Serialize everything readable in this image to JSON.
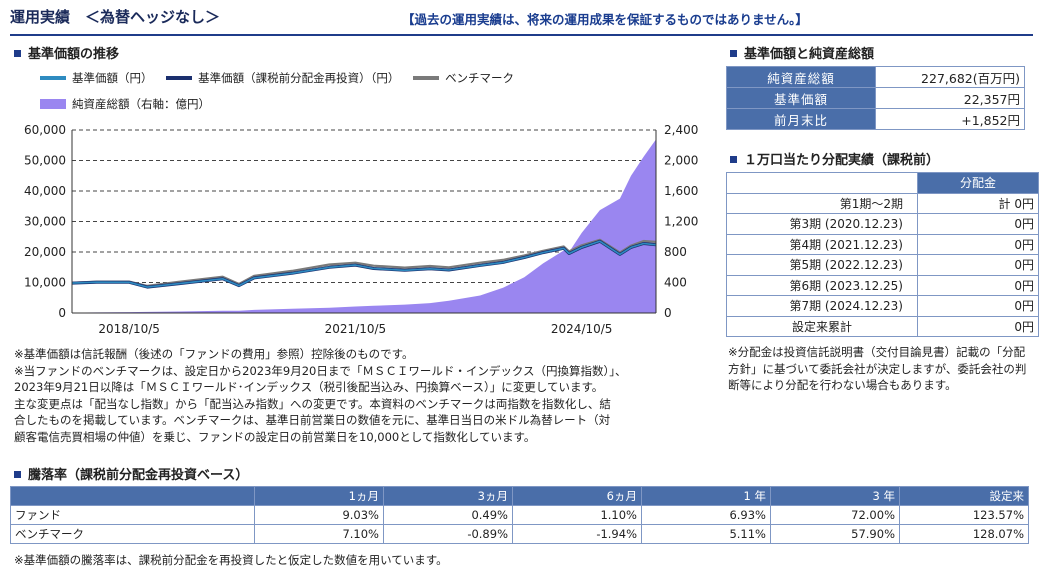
{
  "header": {
    "title": "運用実績　＜為替ヘッジなし＞",
    "disclaimer": "【過去の運用実績は、将来の運用成果を保証するものではありません。】"
  },
  "chart_section": {
    "title": "基準価額の推移",
    "legend": [
      {
        "label": "基準価額（円）",
        "color": "#2e8bc0",
        "kind": "line"
      },
      {
        "label": "基準価額（課税前分配金再投資）（円）",
        "color": "#1b2f6e",
        "kind": "line"
      },
      {
        "label": "ベンチマーク",
        "color": "#7a7a7a",
        "kind": "line"
      },
      {
        "label": "純資産総額（右軸：億円）",
        "color": "#9a86f0",
        "kind": "area"
      }
    ]
  },
  "chart_data": {
    "type": "line",
    "x_tick_labels": [
      "2018/10/5",
      "2021/10/5",
      "2024/10/5"
    ],
    "x_ticks": [
      "2018-10-05",
      "2021-10-05",
      "2024-10-05"
    ],
    "x_range": [
      "2018-01-01",
      "2025-09-30"
    ],
    "y_left": {
      "min": 0,
      "max": 60000,
      "ticks": [
        0,
        10000,
        20000,
        30000,
        40000,
        50000,
        60000
      ],
      "tick_labels": [
        "0",
        "10,000",
        "20,000",
        "30,000",
        "40,000",
        "50,000",
        "60,000"
      ]
    },
    "y_right": {
      "min": 0,
      "max": 2400,
      "ticks": [
        0,
        400,
        800,
        1200,
        1600,
        2000,
        2400
      ],
      "tick_labels": [
        "0",
        "400",
        "800",
        "1,200",
        "1,600",
        "2,000",
        "2,400"
      ]
    },
    "grid": "horizontal dashed",
    "dates": [
      "2018-01-01",
      "2018-05-01",
      "2018-10-05",
      "2019-01-01",
      "2019-06-01",
      "2020-01-01",
      "2020-03-20",
      "2020-06-01",
      "2020-12-01",
      "2021-06-01",
      "2021-10-05",
      "2022-01-01",
      "2022-06-01",
      "2022-10-01",
      "2023-01-01",
      "2023-06-01",
      "2023-09-20",
      "2024-01-01",
      "2024-04-01",
      "2024-07-10",
      "2024-08-05",
      "2024-10-05",
      "2025-01-01",
      "2025-04-08",
      "2025-06-01",
      "2025-08-01",
      "2025-09-30"
    ],
    "series": [
      {
        "name": "基準価額（円）",
        "axis": "left",
        "color": "#2e8bc0",
        "values": [
          9800,
          10100,
          10050,
          8500,
          9600,
          11200,
          9000,
          11500,
          13000,
          15000,
          15700,
          14600,
          14000,
          14500,
          14100,
          15600,
          16600,
          18200,
          19800,
          21200,
          19500,
          21500,
          23500,
          19200,
          21500,
          22800,
          22357
        ]
      },
      {
        "name": "基準価額（課税前分配金再投資）（円）",
        "axis": "left",
        "color": "#1b2f6e",
        "values": [
          9800,
          10100,
          10050,
          8500,
          9600,
          11200,
          9000,
          11500,
          13000,
          15000,
          15700,
          14600,
          14000,
          14500,
          14100,
          15600,
          16600,
          18200,
          19800,
          21200,
          19500,
          21500,
          23500,
          19200,
          21500,
          22800,
          22357
        ]
      },
      {
        "name": "ベンチマーク",
        "axis": "left",
        "color": "#7a7a7a",
        "values": [
          9900,
          10300,
          10300,
          8900,
          10200,
          11900,
          9500,
          12200,
          13800,
          15900,
          16500,
          15500,
          14900,
          15400,
          15000,
          16500,
          17400,
          18900,
          20400,
          21800,
          20200,
          22200,
          24000,
          19800,
          22100,
          23600,
          23300
        ]
      },
      {
        "name": "純資産総額（右軸：億円）",
        "axis": "right",
        "color": "#9a86f0",
        "kind": "area",
        "values": [
          5,
          8,
          12,
          15,
          20,
          30,
          30,
          40,
          55,
          70,
          85,
          95,
          110,
          130,
          160,
          230,
          330,
          470,
          650,
          820,
          800,
          1050,
          1350,
          1500,
          1800,
          2050,
          2276.82
        ]
      }
    ]
  },
  "kpi": {
    "title": "基準価額と純資産総額",
    "rows": [
      {
        "label": "純資産総額",
        "value": "227,682(百万円)"
      },
      {
        "label": "基準価額",
        "value": "22,357円"
      },
      {
        "label": "前月末比",
        "value": "+1,852円"
      }
    ]
  },
  "distribution": {
    "title": "１万口当たり分配実績（課税前）",
    "header": "分配金",
    "rows": [
      {
        "label": "第1期～2期",
        "value": "計 0円"
      },
      {
        "label": "第3期 (2020.12.23)",
        "value": "0円"
      },
      {
        "label": "第4期 (2021.12.23)",
        "value": "0円"
      },
      {
        "label": "第5期 (2022.12.23)",
        "value": "0円"
      },
      {
        "label": "第6期 (2023.12.25)",
        "value": "0円"
      },
      {
        "label": "第7期 (2024.12.23)",
        "value": "0円"
      },
      {
        "label": "設定来累計",
        "value": "0円"
      }
    ],
    "note": "※分配金は投資信託説明書（交付目論見書）記載の「分配方針」に基づいて委託会社が決定しますが、委託会社の判断等により分配を行わない場合もあります。"
  },
  "notes": [
    "※基準価額は信託報酬（後述の「ファンドの費用」参照）控除後のものです。",
    "※当ファンドのベンチマークは、設定日から2023年9月20日まで「ＭＳＣＩワールド・インデックス（円換算指数）」、",
    "2023年9月21日以降は「ＭＳＣＩワールド･インデックス（税引後配当込み、円換算ベース）」に変更しています。",
    "主な変更点は「配当なし指数」から「配当込み指数」への変更です。本資料のベンチマークは両指数を指数化し、結",
    "合したものを掲載しています。ベンチマークは、基準日前営業日の数値を元に、基準日当日の米ドル為替レート（対",
    "顧客電信売買相場の仲値）を乗じ、ファンドの設定日の前営業日を10,000として指数化しています。"
  ],
  "performance": {
    "title": "騰落率（課税前分配金再投資ベース）",
    "columns": [
      "1ヵ月",
      "3ヵ月",
      "6ヵ月",
      "1 年",
      "3 年",
      "設定来"
    ],
    "rows": [
      {
        "label": "ファンド",
        "values": [
          "9.03%",
          "0.49%",
          "1.10%",
          "6.93%",
          "72.00%",
          "123.57%"
        ]
      },
      {
        "label": "ベンチマーク",
        "values": [
          "7.10%",
          "-0.89%",
          "-1.94%",
          "5.11%",
          "57.90%",
          "128.07%"
        ]
      }
    ],
    "note": "※基準価額の騰落率は、課税前分配金を再投資したと仮定した数値を用いています。"
  }
}
